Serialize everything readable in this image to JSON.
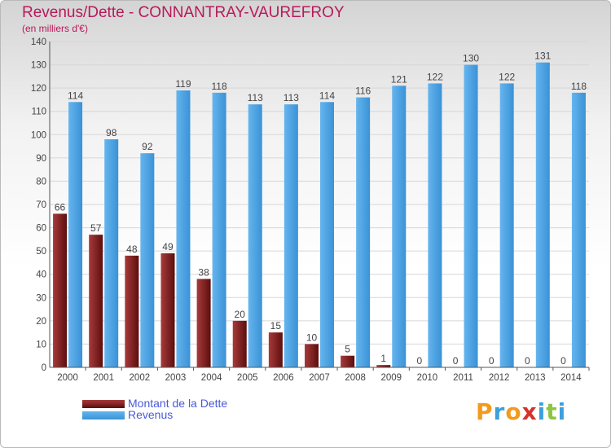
{
  "title": "Revenus/Dette - CONNANTRAY-VAUREFROY",
  "subtitle": "(en milliers d'€)",
  "brand": {
    "name": "Proxiti",
    "letters": [
      {
        "ch": "P",
        "color": "#f39a1e"
      },
      {
        "ch": "r",
        "color": "#3da0dc"
      },
      {
        "ch": "o",
        "color": "#f39a1e"
      },
      {
        "ch": "x",
        "color": "#d6322d"
      },
      {
        "ch": "i",
        "color": "#3da0dc"
      },
      {
        "ch": "t",
        "color": "#8cc63f"
      },
      {
        "ch": "i",
        "color": "#3da0dc"
      }
    ]
  },
  "colors": {
    "dette": "#7a1a1a",
    "revenus": "#4ea4e4",
    "grid": "#d7d7d7",
    "title": "#b8195a"
  },
  "chart_data": {
    "type": "bar",
    "categories": [
      "2000",
      "2001",
      "2002",
      "2003",
      "2004",
      "2005",
      "2006",
      "2007",
      "2008",
      "2009",
      "2010",
      "2011",
      "2012",
      "2013",
      "2014"
    ],
    "series": [
      {
        "name": "Montant de la Dette",
        "values": [
          66,
          57,
          48,
          49,
          38,
          20,
          15,
          10,
          5,
          1,
          0,
          0,
          0,
          0,
          0
        ]
      },
      {
        "name": "Revenus",
        "values": [
          114,
          98,
          92,
          119,
          118,
          113,
          113,
          114,
          116,
          121,
          122,
          130,
          122,
          131,
          118
        ]
      }
    ],
    "ylim": [
      0,
      140
    ],
    "yticks": [
      0,
      10,
      20,
      30,
      40,
      50,
      60,
      70,
      80,
      90,
      100,
      110,
      120,
      130,
      140
    ],
    "grid": true,
    "legend_position": "bottom-left"
  }
}
